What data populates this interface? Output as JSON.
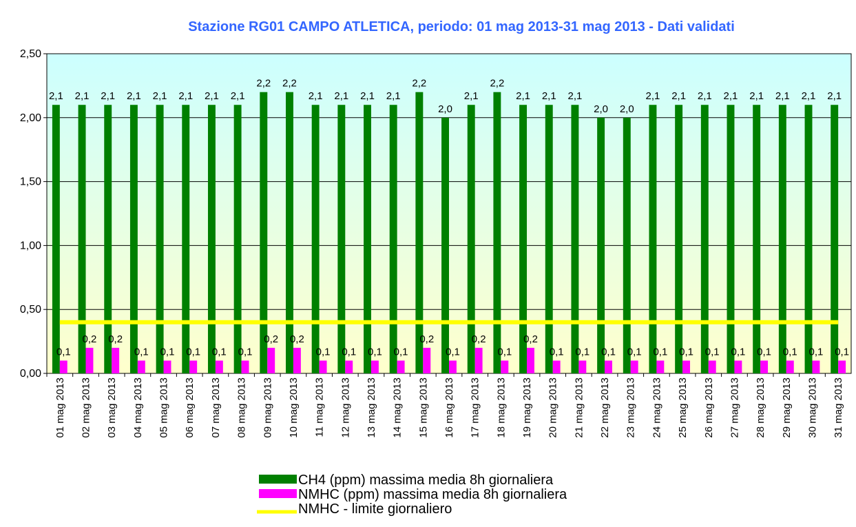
{
  "chart_data": {
    "type": "bar",
    "title": "Stazione RG01 CAMPO ATLETICA, periodo: 01 mag 2013-31 mag 2013 - Dati validati",
    "categories": [
      "01 mag 2013",
      "02 mag 2013",
      "03 mag 2013",
      "04 mag 2013",
      "05 mag 2013",
      "06 mag 2013",
      "07 mag 2013",
      "08 mag 2013",
      "09 mag 2013",
      "10 mag 2013",
      "11 mag 2013",
      "12 mag 2013",
      "13 mag 2013",
      "14 mag 2013",
      "15 mag 2013",
      "16 mag 2013",
      "17 mag 2013",
      "18 mag 2013",
      "19 mag 2013",
      "20 mag 2013",
      "21 mag 2013",
      "22 mag 2013",
      "23 mag 2013",
      "24 mag 2013",
      "25 mag 2013",
      "26 mag 2013",
      "27 mag 2013",
      "28 mag 2013",
      "29 mag 2013",
      "30 mag 2013",
      "31 mag 2013"
    ],
    "series": [
      {
        "name": "CH4 (ppm) massima media 8h giornaliera",
        "color": "#008000",
        "type": "bar",
        "values": [
          2.1,
          2.1,
          2.1,
          2.1,
          2.1,
          2.1,
          2.1,
          2.1,
          2.2,
          2.2,
          2.1,
          2.1,
          2.1,
          2.1,
          2.2,
          2.0,
          2.1,
          2.2,
          2.1,
          2.1,
          2.1,
          2.0,
          2.0,
          2.1,
          2.1,
          2.1,
          2.1,
          2.1,
          2.1,
          2.1,
          2.1
        ],
        "value_labels": [
          "2,1",
          "2,1",
          "2,1",
          "2,1",
          "2,1",
          "2,1",
          "2,1",
          "2,1",
          "2,2",
          "2,2",
          "2,1",
          "2,1",
          "2,1",
          "2,1",
          "2,2",
          "2,0",
          "2,1",
          "2,2",
          "2,1",
          "2,1",
          "2,1",
          "2,0",
          "2,0",
          "2,1",
          "2,1",
          "2,1",
          "2,1",
          "2,1",
          "2,1",
          "2,1",
          "2,1"
        ]
      },
      {
        "name": "NMHC (ppm) massima media 8h giornaliera",
        "color": "#ff00ff",
        "type": "bar",
        "values": [
          0.1,
          0.2,
          0.2,
          0.1,
          0.1,
          0.1,
          0.1,
          0.1,
          0.2,
          0.2,
          0.1,
          0.1,
          0.1,
          0.1,
          0.2,
          0.1,
          0.2,
          0.1,
          0.2,
          0.1,
          0.1,
          0.1,
          0.1,
          0.1,
          0.1,
          0.1,
          0.1,
          0.1,
          0.1,
          0.1,
          0.1
        ],
        "value_labels": [
          "0,1",
          "0,2",
          "0,2",
          "0,1",
          "0,1",
          "0,1",
          "0,1",
          "0,1",
          "0,2",
          "0,2",
          "0,1",
          "0,1",
          "0,1",
          "0,1",
          "0,2",
          "0,1",
          "0,2",
          "0,1",
          "0,2",
          "0,1",
          "0,1",
          "0,1",
          "0,1",
          "0,1",
          "0,1",
          "0,1",
          "0,1",
          "0,1",
          "0,1",
          "0,1",
          "0,1"
        ]
      },
      {
        "name": "NMHC - limite giornaliero",
        "color": "#ffff00",
        "type": "line",
        "values": [
          0.4,
          0.4,
          0.4,
          0.4,
          0.4,
          0.4,
          0.4,
          0.4,
          0.4,
          0.4,
          0.4,
          0.4,
          0.4,
          0.4,
          0.4,
          0.4,
          0.4,
          0.4,
          0.4,
          0.4,
          0.4,
          0.4,
          0.4,
          0.4,
          0.4,
          0.4,
          0.4,
          0.4,
          0.4,
          0.4,
          0.4
        ]
      }
    ],
    "ylim": [
      0,
      2.5
    ],
    "yticks": [
      {
        "value": 0,
        "label": "0,00"
      },
      {
        "value": 0.5,
        "label": "0,50"
      },
      {
        "value": 1,
        "label": "1,00"
      },
      {
        "value": 1.5,
        "label": "1,50"
      },
      {
        "value": 2,
        "label": "2,00"
      },
      {
        "value": 2.5,
        "label": "2,50"
      }
    ],
    "grid": true
  }
}
